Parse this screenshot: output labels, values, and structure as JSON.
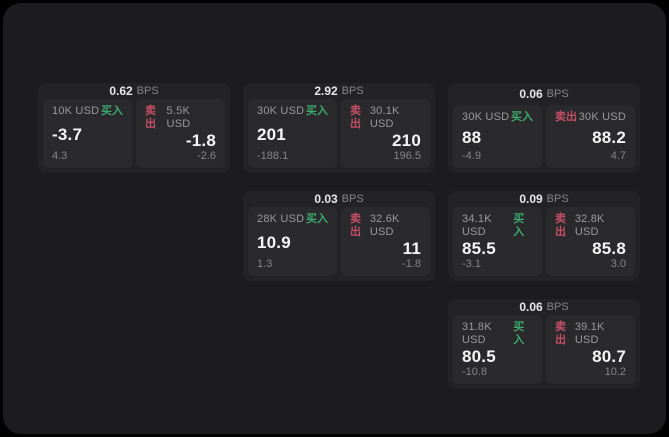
{
  "labels": {
    "bps": "BPS",
    "buy": "买入",
    "sell": "卖出"
  },
  "colors": {
    "page_bg": "#000000",
    "panel_bg": "#1c1c1e",
    "card_bg": "#232325",
    "tile_bg": "#2a2a2c",
    "buy_green": "#3da86f",
    "sell_red": "#c24f65",
    "price_text": "#f5f5f5",
    "muted_text": "#9a9a9a"
  },
  "cards": [
    {
      "row": 1,
      "col": 1,
      "bps": "0.62",
      "buy": {
        "amount": "10K USD",
        "price": "-3.7",
        "delta": "4.3"
      },
      "sell": {
        "amount": "5.5K USD",
        "price": "-1.8",
        "delta": "-2.6"
      }
    },
    {
      "row": 1,
      "col": 2,
      "bps": "2.92",
      "buy": {
        "amount": "30K USD",
        "price": "201",
        "delta": "-188.1"
      },
      "sell": {
        "amount": "30.1K USD",
        "price": "210",
        "delta": "196.5"
      }
    },
    {
      "row": 1,
      "col": 3,
      "bps": "0.06",
      "buy": {
        "amount": "30K USD",
        "price": "88",
        "delta": "-4.9"
      },
      "sell": {
        "amount": "30K USD",
        "price": "88.2",
        "delta": "4.7"
      }
    },
    {
      "row": 2,
      "col": 2,
      "bps": "0.03",
      "buy": {
        "amount": "28K USD",
        "price": "10.9",
        "delta": "1.3"
      },
      "sell": {
        "amount": "32.6K USD",
        "price": "11",
        "delta": "-1.8"
      }
    },
    {
      "row": 2,
      "col": 3,
      "bps": "0.09",
      "buy": {
        "amount": "34.1K USD",
        "price": "85.5",
        "delta": "-3.1"
      },
      "sell": {
        "amount": "32.8K USD",
        "price": "85.8",
        "delta": "3.0"
      }
    },
    {
      "row": 3,
      "col": 3,
      "bps": "0.06",
      "buy": {
        "amount": "31.8K USD",
        "price": "80.5",
        "delta": "-10.8"
      },
      "sell": {
        "amount": "39.1K USD",
        "price": "80.7",
        "delta": "10.2"
      }
    }
  ]
}
